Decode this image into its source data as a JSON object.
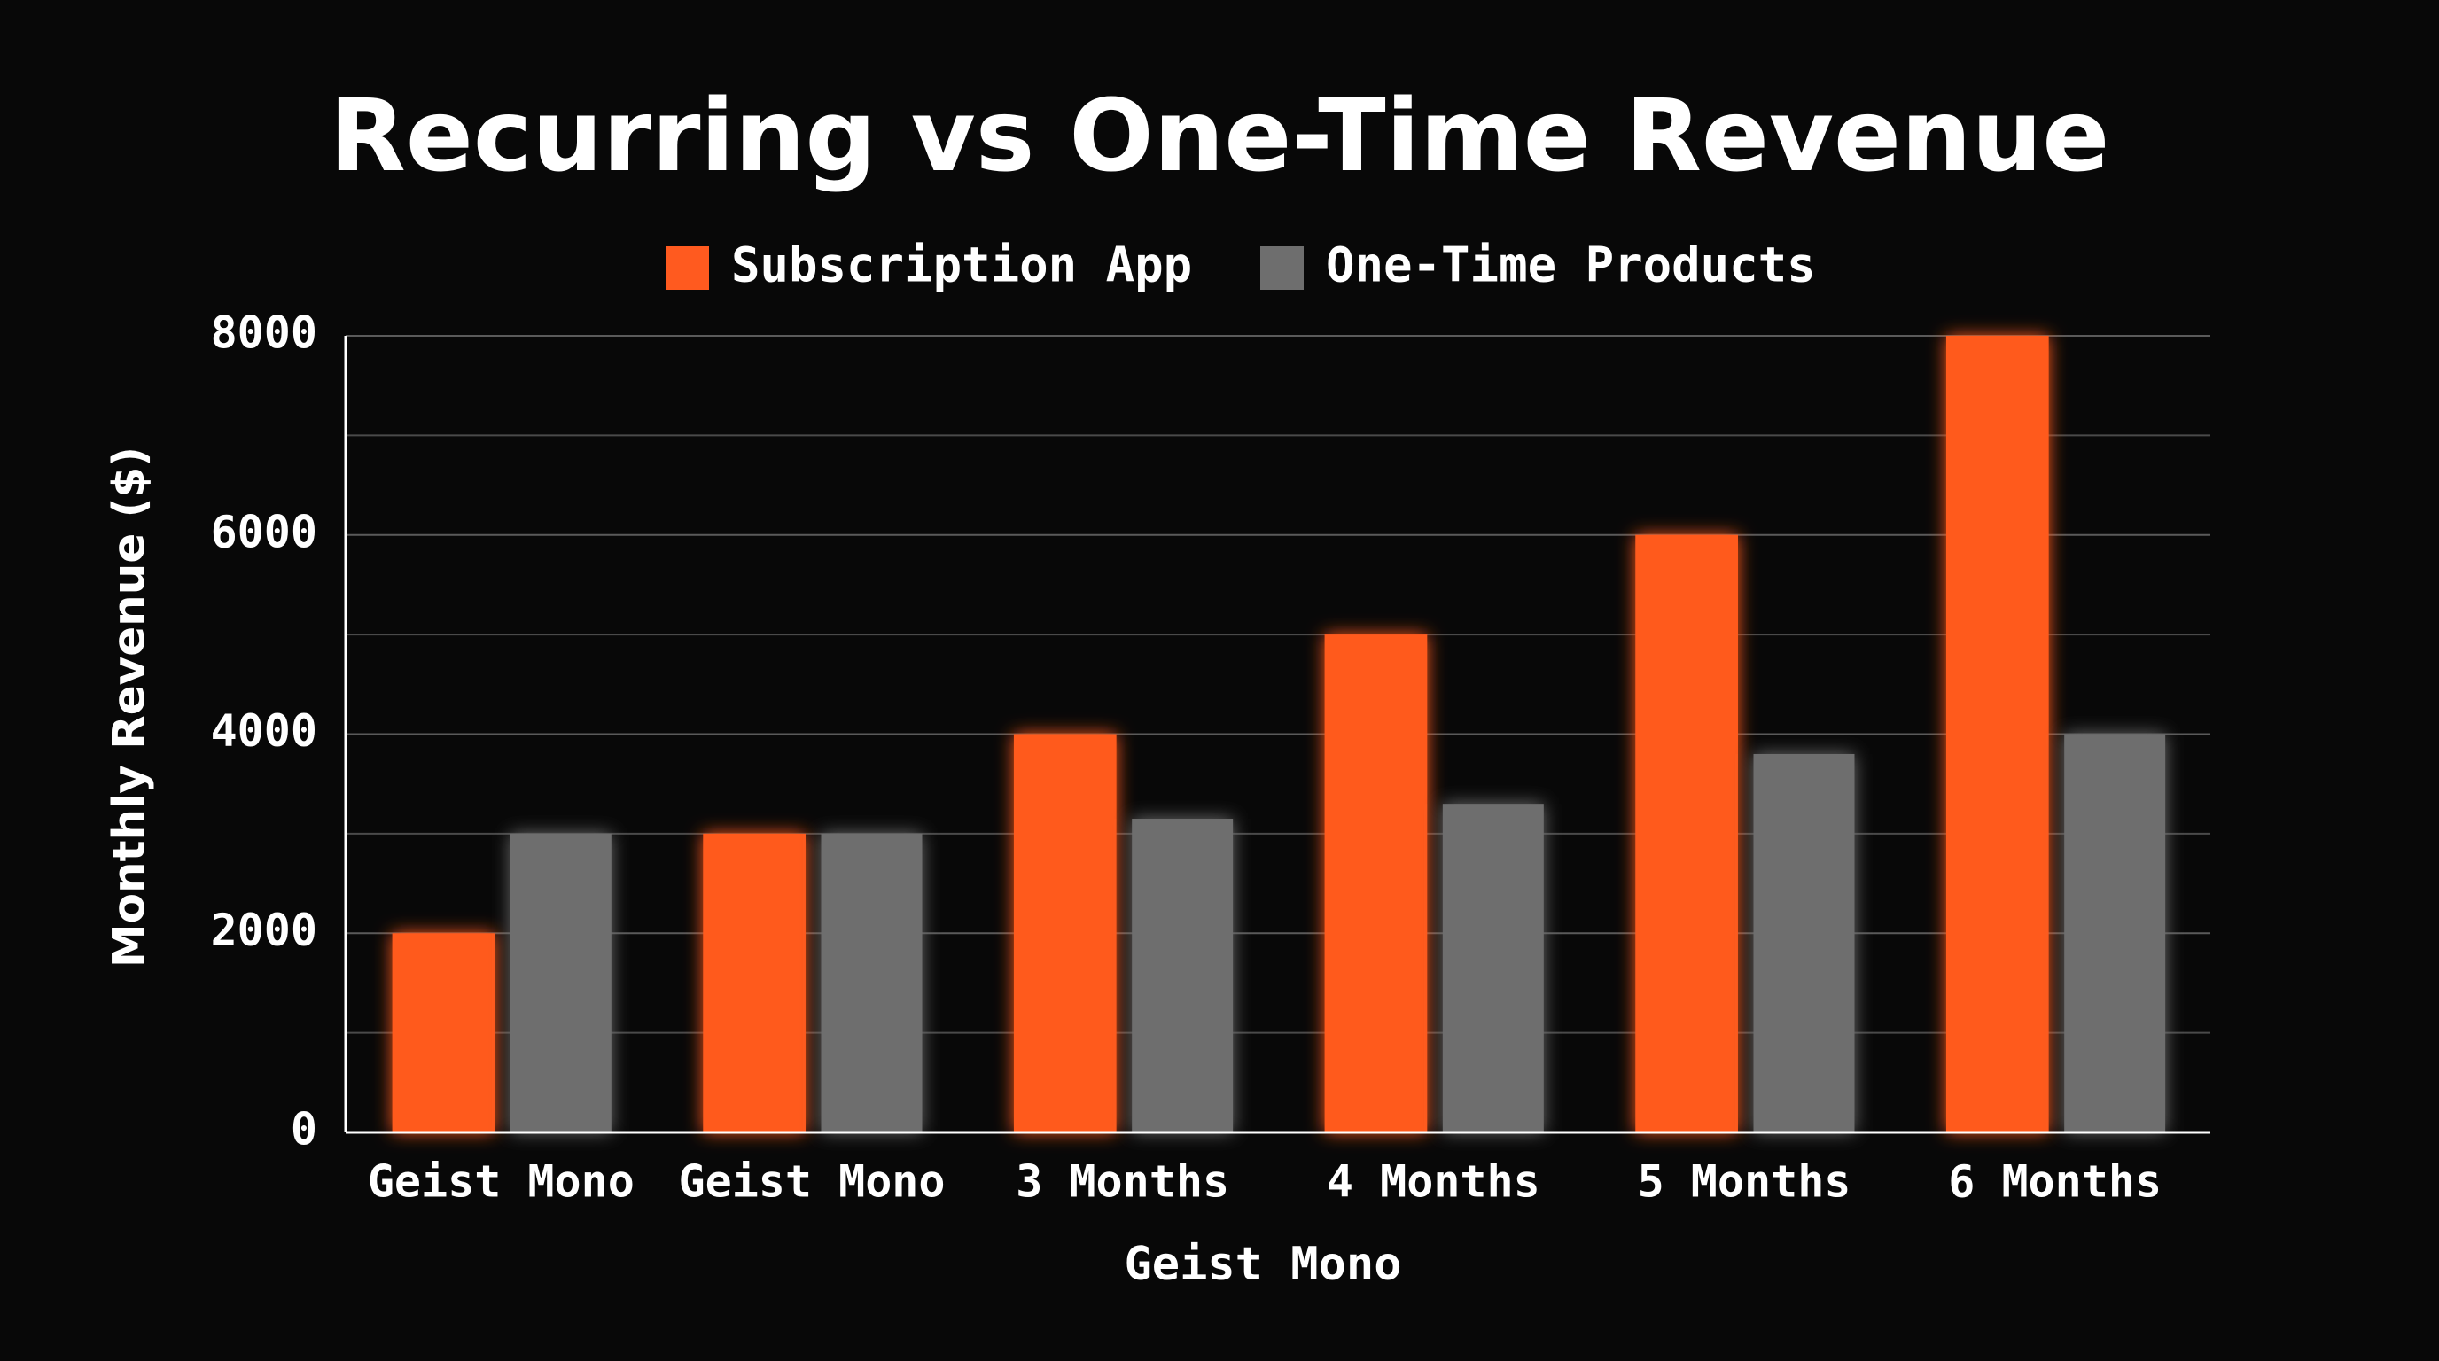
{
  "chart_data": {
    "type": "bar",
    "title": "Recurring vs One-Time Revenue",
    "x_label": "Geist Mono",
    "y_label": "Monthly Revenue ($)",
    "categories": [
      "Geist Mono",
      "Geist Mono",
      "3 Months",
      "4 Months",
      "5 Months",
      "6 Months"
    ],
    "series": [
      {
        "name": "Subscription App",
        "color": "#ff5a1f",
        "values": [
          2000,
          3000,
          4000,
          5000,
          6000,
          8000
        ]
      },
      {
        "name": "One-Time Products",
        "color": "#6e6e6e",
        "values": [
          3000,
          3000,
          3150,
          3300,
          3800,
          4000
        ]
      }
    ],
    "ylim": [
      0,
      8000
    ],
    "yticks": [
      0,
      2000,
      4000,
      6000,
      8000
    ],
    "minor_yticks": [
      1000,
      3000,
      5000,
      7000
    ],
    "grid": true,
    "legend": "top"
  }
}
